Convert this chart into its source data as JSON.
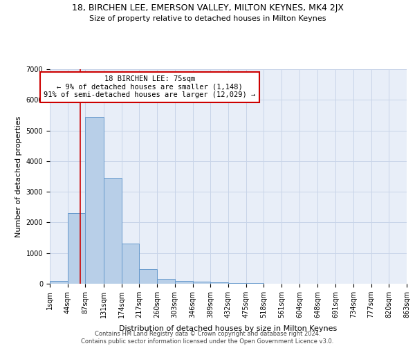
{
  "title1": "18, BIRCHEN LEE, EMERSON VALLEY, MILTON KEYNES, MK4 2JX",
  "title2": "Size of property relative to detached houses in Milton Keynes",
  "xlabel": "Distribution of detached houses by size in Milton Keynes",
  "ylabel": "Number of detached properties",
  "footer1": "Contains HM Land Registry data © Crown copyright and database right 2024.",
  "footer2": "Contains public sector information licensed under the Open Government Licence v3.0.",
  "bin_edges": [
    1,
    44,
    87,
    131,
    174,
    217,
    260,
    303,
    346,
    389,
    432,
    475,
    518,
    561,
    604,
    648,
    691,
    734,
    777,
    820,
    863
  ],
  "bar_values": [
    100,
    2300,
    5450,
    3450,
    1320,
    470,
    160,
    90,
    70,
    35,
    20,
    12,
    8,
    5,
    4,
    3,
    2,
    2,
    1,
    1
  ],
  "bar_color": "#b8cfe8",
  "bar_edge_color": "#6699cc",
  "grid_color": "#c8d4e8",
  "background_color": "#e8eef8",
  "annotation_box_color": "#ffffff",
  "annotation_box_edge_color": "#cc0000",
  "red_line_color": "#cc0000",
  "property_sqm": 75,
  "annotation_line1": "18 BIRCHEN LEE: 75sqm",
  "annotation_line2": "← 9% of detached houses are smaller (1,148)",
  "annotation_line3": "91% of semi-detached houses are larger (12,029) →",
  "ylim": [
    0,
    7000
  ],
  "yticks": [
    0,
    1000,
    2000,
    3000,
    4000,
    5000,
    6000,
    7000
  ],
  "title1_fontsize": 9,
  "title2_fontsize": 8,
  "ylabel_fontsize": 8,
  "xlabel_fontsize": 8,
  "tick_fontsize": 7,
  "footer_fontsize": 6,
  "annot_fontsize": 7.5
}
